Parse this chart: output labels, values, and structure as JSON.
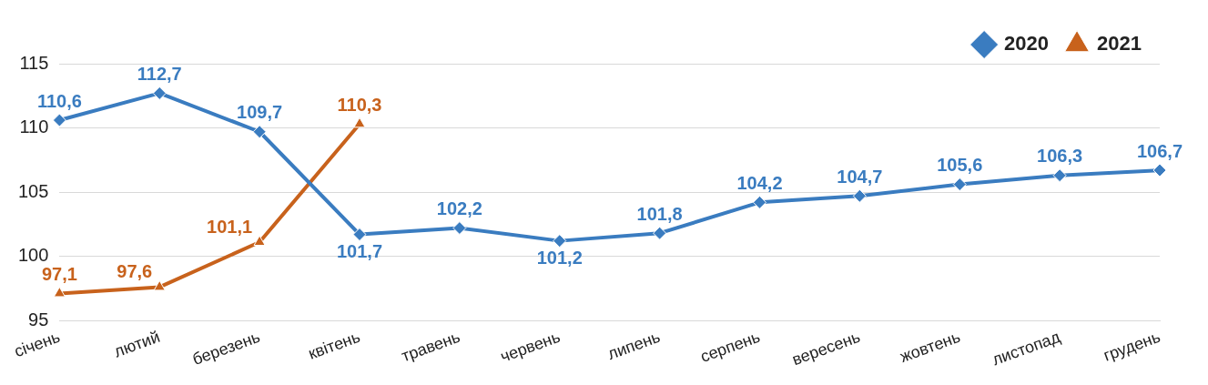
{
  "chart_data": {
    "type": "line",
    "categories": [
      "січень",
      "лютий",
      "березень",
      "квітень",
      "травень",
      "червень",
      "липень",
      "серпень",
      "вересень",
      "жовтень",
      "листопад",
      "грудень"
    ],
    "series": [
      {
        "name": "2020",
        "color": "#3a7cc0",
        "marker": "diamond",
        "values": [
          110.6,
          112.7,
          109.7,
          101.7,
          102.2,
          101.2,
          101.8,
          104.2,
          104.7,
          105.6,
          106.3,
          106.7
        ],
        "value_labels": [
          "110,6",
          "112,7",
          "109,7",
          "101,7",
          "102,2",
          "101,2",
          "101,8",
          "104,2",
          "104,7",
          "105,6",
          "106,3",
          "106,7"
        ]
      },
      {
        "name": "2021",
        "color": "#c8621c",
        "marker": "triangle",
        "values": [
          97.1,
          97.6,
          101.1,
          110.3,
          null,
          null,
          null,
          null,
          null,
          null,
          null,
          null
        ],
        "value_labels": [
          "97,1",
          "97,6",
          "101,1",
          "110,3",
          null,
          null,
          null,
          null,
          null,
          null,
          null,
          null
        ]
      }
    ],
    "ylim": [
      95,
      115
    ],
    "yticks": [
      95,
      100,
      105,
      110,
      115
    ],
    "grid": "y",
    "legend": "top right",
    "line_style": "solid"
  }
}
